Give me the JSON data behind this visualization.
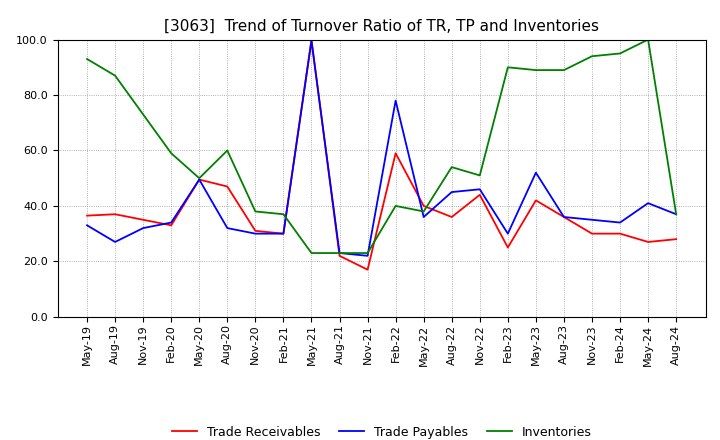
{
  "title": "[3063]  Trend of Turnover Ratio of TR, TP and Inventories",
  "ylim": [
    0.0,
    100.0
  ],
  "yticks": [
    0.0,
    20.0,
    40.0,
    60.0,
    80.0,
    100.0
  ],
  "x_labels": [
    "May-19",
    "Aug-19",
    "Nov-19",
    "Feb-20",
    "May-20",
    "Aug-20",
    "Nov-20",
    "Feb-21",
    "May-21",
    "Aug-21",
    "Nov-21",
    "Feb-22",
    "May-22",
    "Aug-22",
    "Nov-22",
    "Feb-23",
    "May-23",
    "Aug-23",
    "Nov-23",
    "Feb-24",
    "May-24",
    "Aug-24"
  ],
  "trade_receivables": [
    36.5,
    37.0,
    35.0,
    33.0,
    49.5,
    47.0,
    31.0,
    30.0,
    100.0,
    22.0,
    17.0,
    59.0,
    40.0,
    36.0,
    44.0,
    25.0,
    42.0,
    36.0,
    30.0,
    30.0,
    27.0,
    28.0
  ],
  "trade_payables": [
    33.0,
    27.0,
    32.0,
    34.0,
    49.5,
    32.0,
    30.0,
    30.0,
    99.5,
    23.0,
    22.0,
    78.0,
    36.0,
    45.0,
    46.0,
    30.0,
    52.0,
    36.0,
    35.0,
    34.0,
    41.0,
    37.0
  ],
  "inventories": [
    93.0,
    87.0,
    73.0,
    59.0,
    50.0,
    60.0,
    38.0,
    37.0,
    23.0,
    23.0,
    23.0,
    40.0,
    38.0,
    54.0,
    51.0,
    90.0,
    89.0,
    89.0,
    94.0,
    95.0,
    100.0,
    37.0
  ],
  "tr_color": "#ff0000",
  "tp_color": "#0000ff",
  "inv_color": "#008000",
  "legend_labels": [
    "Trade Receivables",
    "Trade Payables",
    "Inventories"
  ],
  "bg_color": "#ffffff",
  "grid_color": "#999999",
  "title_fontsize": 11,
  "legend_fontsize": 9,
  "tick_fontsize": 8
}
